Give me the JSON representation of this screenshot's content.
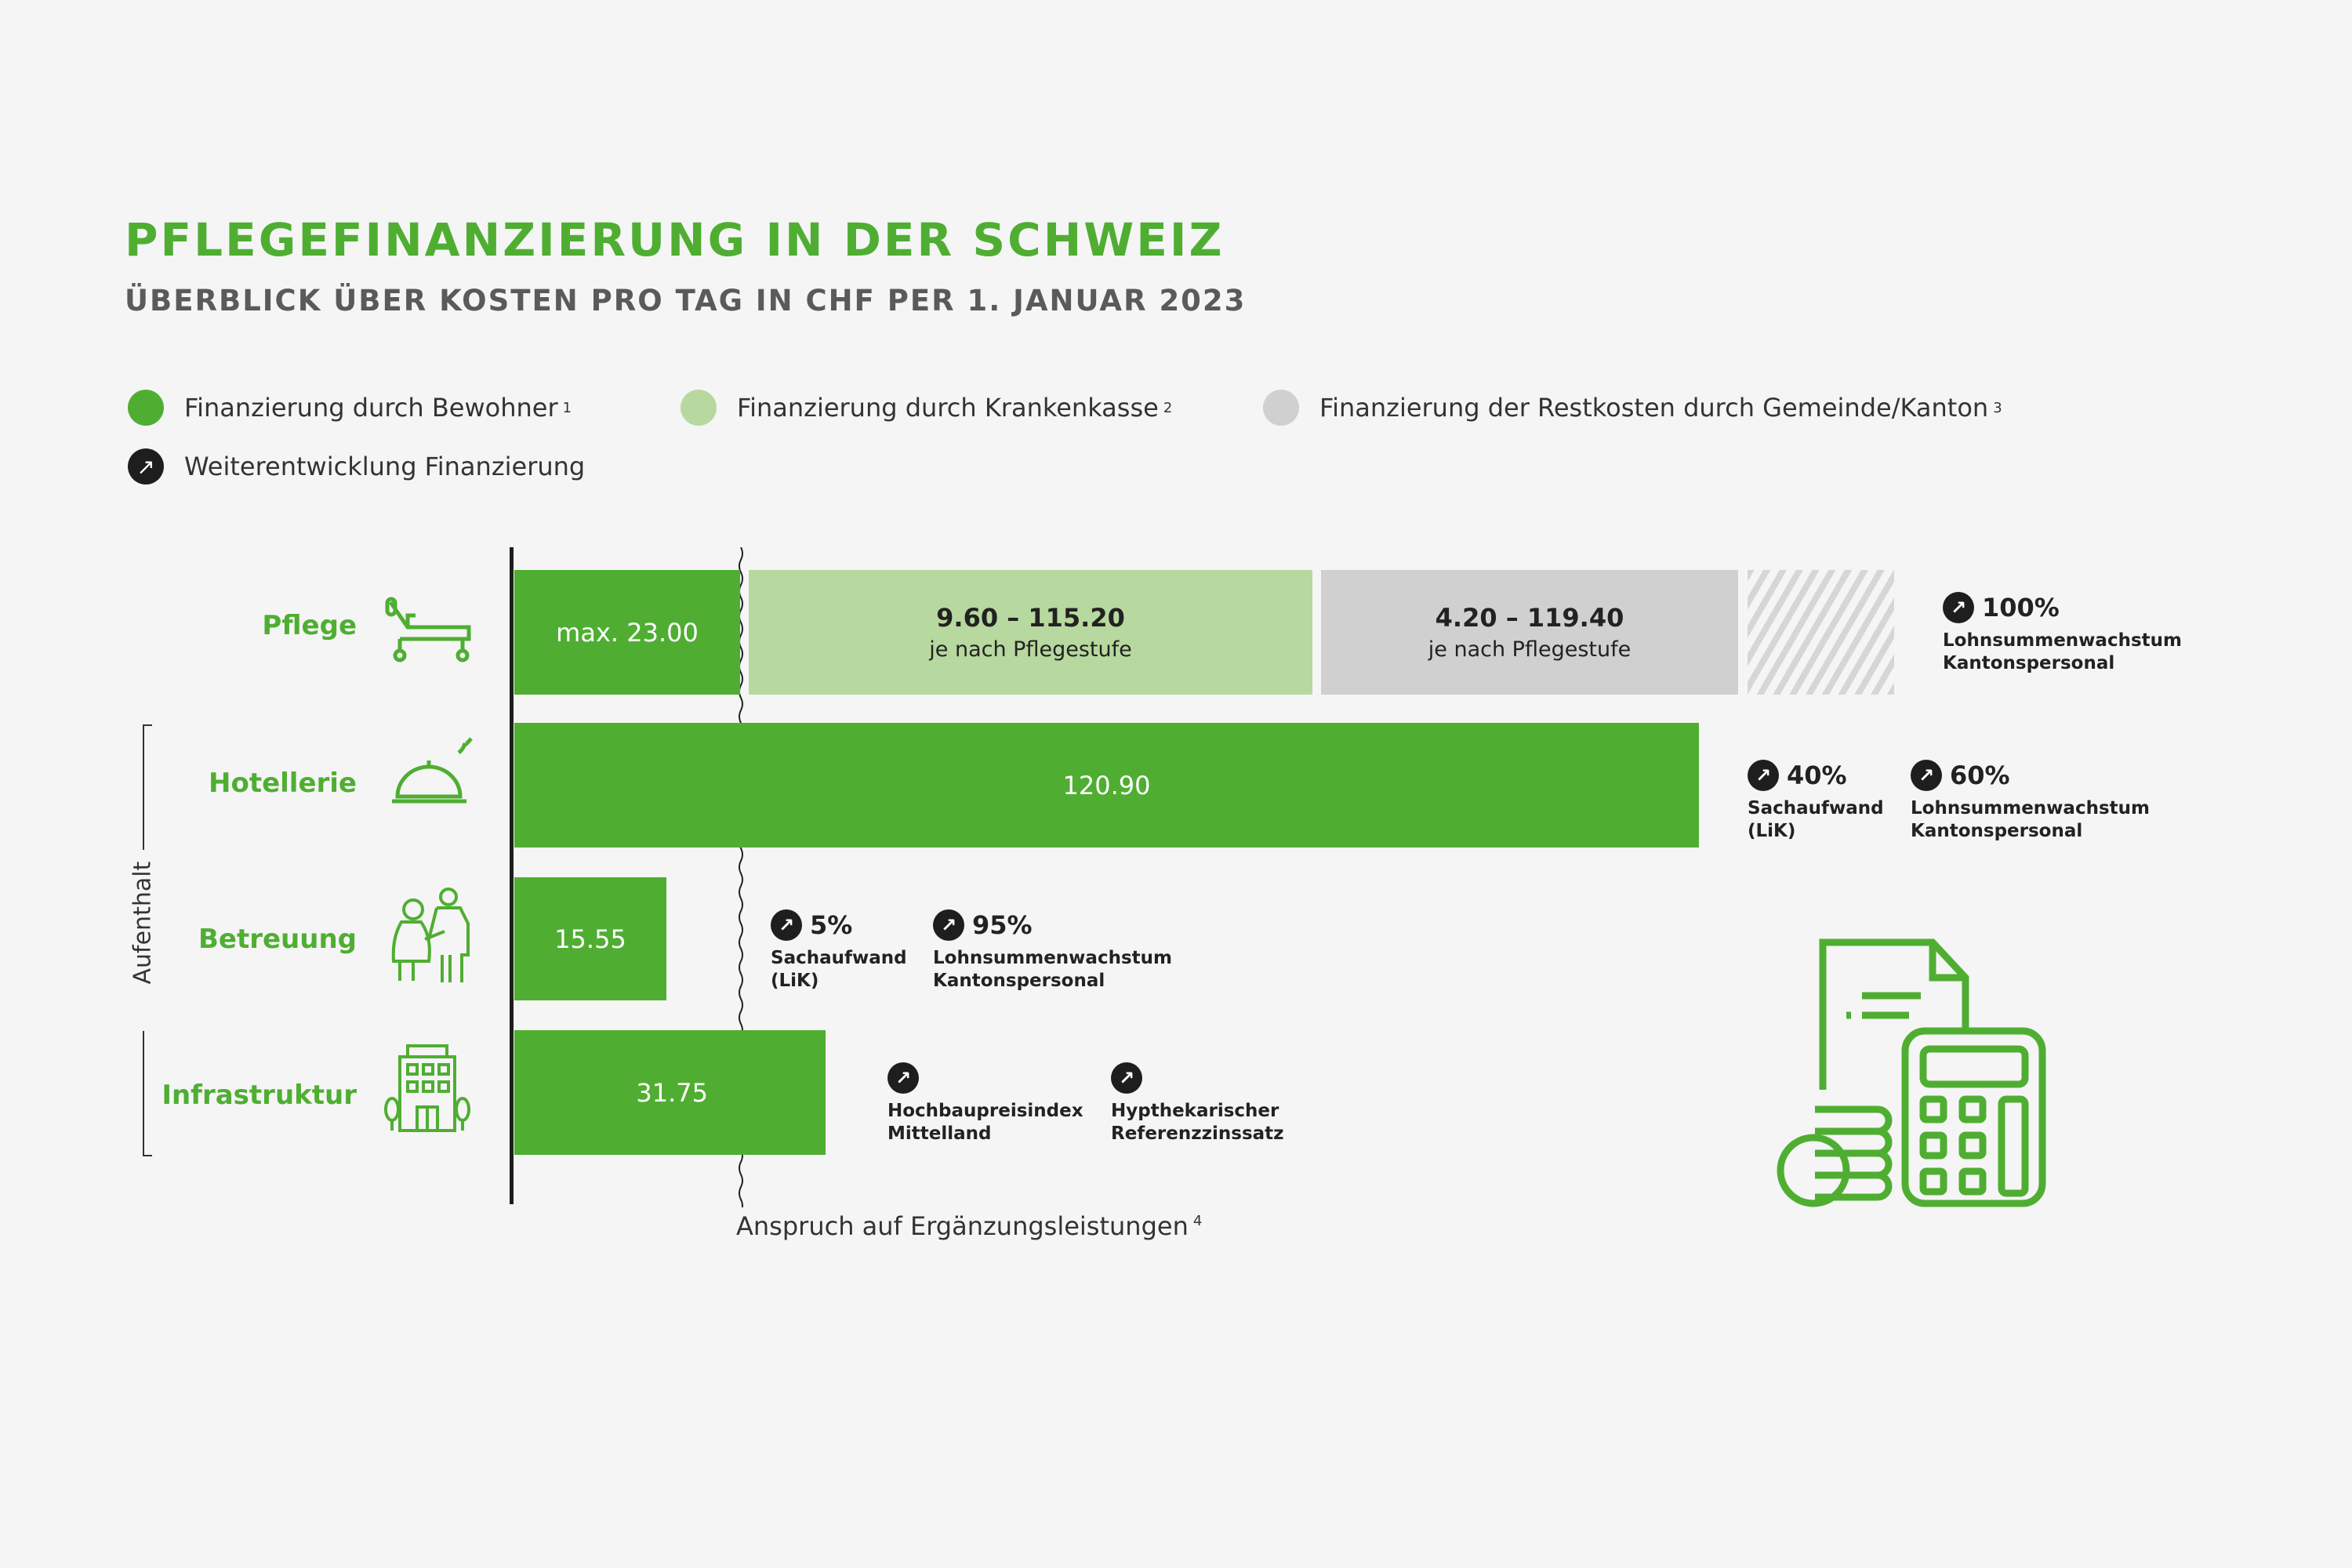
{
  "header": {
    "title": "PFLEGEFINANZIERUNG IN DER SCHWEIZ",
    "subtitle": "ÜBERBLICK ÜBER KOSTEN PRO TAG IN CHF PER 1. JANUAR 2023"
  },
  "legend": [
    {
      "label": "Finanzierung durch Bewohner",
      "note": "1",
      "color": "#4fae32"
    },
    {
      "label": "Finanzierung durch Krankenkasse",
      "note": "2",
      "color": "#b7d89e"
    },
    {
      "label": "Finanzierung der Restkosten durch Gemeinde/Kanton",
      "note": "3",
      "color": "#d0d0d0"
    },
    {
      "label": "Weiterentwicklung Finanzierung",
      "icon": "arrow-up-right-icon",
      "color": "#1e1e1e"
    }
  ],
  "group_label": "Aufenthalt",
  "threshold_label": "Anspruch auf Ergänzungsleistungen",
  "threshold_note": "4",
  "chart_data": {
    "type": "bar",
    "orientation": "horizontal",
    "stacked": true,
    "unit": "CHF pro Tag",
    "categories": [
      "Pflege",
      "Hotellerie",
      "Betreuung",
      "Infrastruktur"
    ],
    "series": [
      {
        "name": "Finanzierung durch Bewohner",
        "values": [
          23.0,
          120.9,
          15.55,
          31.75
        ],
        "labels": [
          "max. 23.00",
          "120.90",
          "15.55",
          "31.75"
        ]
      },
      {
        "name": "Finanzierung durch Krankenkasse",
        "values": [
          [
            9.6,
            115.2
          ],
          null,
          null,
          null
        ],
        "labels": [
          "9.60 – 115.20",
          null,
          null,
          null
        ],
        "sublabel": "je nach Pflegestufe"
      },
      {
        "name": "Finanzierung der Restkosten durch Gemeinde/Kanton",
        "values": [
          [
            4.2,
            119.4
          ],
          null,
          null,
          null
        ],
        "labels": [
          "4.20 – 119.40",
          null,
          null,
          null
        ],
        "sublabel": "je nach Pflegestufe"
      }
    ]
  },
  "annotations": {
    "pflege": [
      {
        "pct": "100%",
        "line1": "Lohnsummenwachstum",
        "line2": "Kantonspersonal"
      }
    ],
    "hotellerie": [
      {
        "pct": "40%",
        "line1": "Sachaufwand",
        "line2": "(LiK)"
      },
      {
        "pct": "60%",
        "line1": "Lohnsummenwachstum",
        "line2": "Kantonspersonal"
      }
    ],
    "betreuung": [
      {
        "pct": "5%",
        "line1": "Sachaufwand",
        "line2": "(LiK)"
      },
      {
        "pct": "95%",
        "line1": "Lohnsummenwachstum",
        "line2": "Kantonspersonal"
      }
    ],
    "infrastruktur": [
      {
        "line1": "Hochbaupreisindex",
        "line2": "Mittelland"
      },
      {
        "line1": "Hypthekarischer",
        "line2": "Referenzzinssatz"
      }
    ]
  },
  "arrow_glyph": "↗"
}
